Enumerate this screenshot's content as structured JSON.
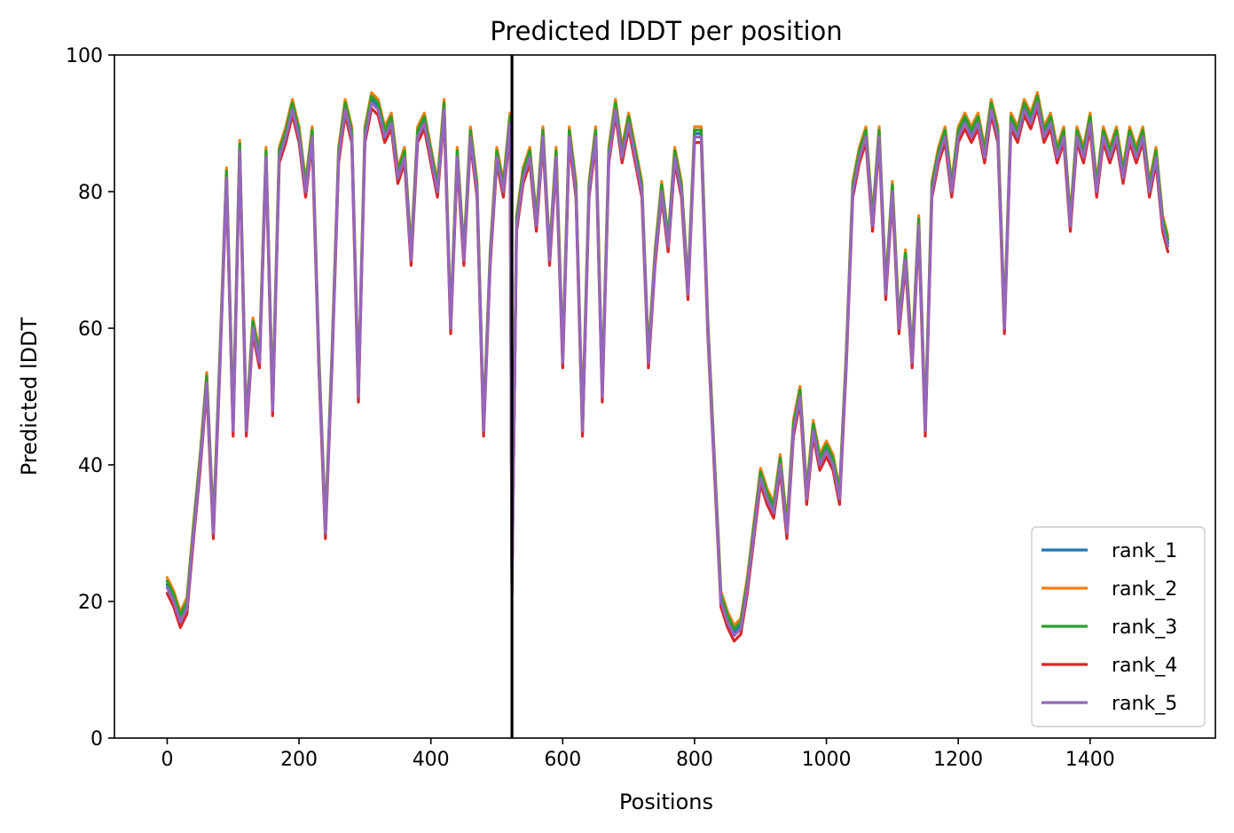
{
  "chart_data": {
    "type": "line",
    "title": "Predicted lDDT per position",
    "xlabel": "Positions",
    "ylabel": "Predicted lDDT",
    "xlim": [
      -80,
      1590
    ],
    "ylim": [
      0,
      100
    ],
    "xticks": [
      0,
      200,
      400,
      600,
      800,
      1000,
      1200,
      1400
    ],
    "yticks": [
      0,
      20,
      40,
      60,
      80,
      100
    ],
    "grid": false,
    "legend_position": "lower right",
    "vline": 523,
    "colors": {
      "rank_1": "#1f77b4",
      "rank_2": "#ff7f0e",
      "rank_3": "#2ca02c",
      "rank_4": "#d62728",
      "rank_5": "#9467bd",
      "vline": "#000000"
    },
    "base_profile": [
      [
        0,
        22
      ],
      [
        10,
        20
      ],
      [
        20,
        17
      ],
      [
        30,
        19
      ],
      [
        40,
        30
      ],
      [
        50,
        40
      ],
      [
        60,
        52
      ],
      [
        70,
        30
      ],
      [
        80,
        55
      ],
      [
        90,
        82
      ],
      [
        100,
        45
      ],
      [
        110,
        86
      ],
      [
        120,
        45
      ],
      [
        130,
        60
      ],
      [
        140,
        55
      ],
      [
        150,
        85
      ],
      [
        160,
        48
      ],
      [
        170,
        85
      ],
      [
        180,
        88
      ],
      [
        190,
        92
      ],
      [
        200,
        88
      ],
      [
        210,
        80
      ],
      [
        220,
        88
      ],
      [
        230,
        55
      ],
      [
        240,
        30
      ],
      [
        250,
        55
      ],
      [
        260,
        85
      ],
      [
        270,
        92
      ],
      [
        280,
        88
      ],
      [
        290,
        50
      ],
      [
        300,
        88
      ],
      [
        310,
        93
      ],
      [
        320,
        92
      ],
      [
        330,
        88
      ],
      [
        340,
        90
      ],
      [
        350,
        82
      ],
      [
        360,
        85
      ],
      [
        370,
        70
      ],
      [
        380,
        88
      ],
      [
        390,
        90
      ],
      [
        400,
        85
      ],
      [
        410,
        80
      ],
      [
        420,
        92
      ],
      [
        430,
        60
      ],
      [
        440,
        85
      ],
      [
        450,
        70
      ],
      [
        460,
        88
      ],
      [
        470,
        80
      ],
      [
        480,
        45
      ],
      [
        490,
        70
      ],
      [
        500,
        85
      ],
      [
        510,
        80
      ],
      [
        520,
        90
      ],
      [
        523,
        22
      ],
      [
        530,
        75
      ],
      [
        540,
        82
      ],
      [
        550,
        85
      ],
      [
        560,
        75
      ],
      [
        570,
        88
      ],
      [
        580,
        70
      ],
      [
        590,
        85
      ],
      [
        600,
        55
      ],
      [
        610,
        88
      ],
      [
        620,
        80
      ],
      [
        630,
        45
      ],
      [
        640,
        80
      ],
      [
        650,
        88
      ],
      [
        660,
        50
      ],
      [
        670,
        85
      ],
      [
        680,
        92
      ],
      [
        690,
        85
      ],
      [
        700,
        90
      ],
      [
        710,
        85
      ],
      [
        720,
        80
      ],
      [
        730,
        55
      ],
      [
        740,
        70
      ],
      [
        750,
        80
      ],
      [
        760,
        72
      ],
      [
        770,
        85
      ],
      [
        780,
        80
      ],
      [
        790,
        65
      ],
      [
        800,
        88
      ],
      [
        810,
        88
      ],
      [
        820,
        60
      ],
      [
        830,
        40
      ],
      [
        840,
        20
      ],
      [
        850,
        17
      ],
      [
        860,
        15
      ],
      [
        870,
        16
      ],
      [
        880,
        22
      ],
      [
        890,
        30
      ],
      [
        900,
        38
      ],
      [
        910,
        35
      ],
      [
        920,
        33
      ],
      [
        930,
        40
      ],
      [
        940,
        30
      ],
      [
        950,
        45
      ],
      [
        960,
        50
      ],
      [
        970,
        35
      ],
      [
        980,
        45
      ],
      [
        990,
        40
      ],
      [
        1000,
        42
      ],
      [
        1010,
        40
      ],
      [
        1020,
        35
      ],
      [
        1030,
        55
      ],
      [
        1040,
        80
      ],
      [
        1050,
        85
      ],
      [
        1060,
        88
      ],
      [
        1070,
        75
      ],
      [
        1080,
        88
      ],
      [
        1090,
        65
      ],
      [
        1100,
        80
      ],
      [
        1110,
        60
      ],
      [
        1120,
        70
      ],
      [
        1130,
        55
      ],
      [
        1140,
        75
      ],
      [
        1150,
        45
      ],
      [
        1160,
        80
      ],
      [
        1170,
        85
      ],
      [
        1180,
        88
      ],
      [
        1190,
        80
      ],
      [
        1200,
        88
      ],
      [
        1210,
        90
      ],
      [
        1220,
        88
      ],
      [
        1230,
        90
      ],
      [
        1240,
        85
      ],
      [
        1250,
        92
      ],
      [
        1260,
        88
      ],
      [
        1270,
        60
      ],
      [
        1280,
        90
      ],
      [
        1290,
        88
      ],
      [
        1300,
        92
      ],
      [
        1310,
        90
      ],
      [
        1320,
        93
      ],
      [
        1330,
        88
      ],
      [
        1340,
        90
      ],
      [
        1350,
        85
      ],
      [
        1360,
        88
      ],
      [
        1370,
        75
      ],
      [
        1380,
        88
      ],
      [
        1390,
        85
      ],
      [
        1400,
        90
      ],
      [
        1410,
        80
      ],
      [
        1420,
        88
      ],
      [
        1430,
        85
      ],
      [
        1440,
        88
      ],
      [
        1450,
        82
      ],
      [
        1460,
        88
      ],
      [
        1470,
        85
      ],
      [
        1480,
        88
      ],
      [
        1490,
        80
      ],
      [
        1500,
        85
      ],
      [
        1510,
        75
      ],
      [
        1518,
        72
      ]
    ],
    "series": [
      {
        "name": "rank_1",
        "offset": 0.5
      },
      {
        "name": "rank_2",
        "offset": 1.5
      },
      {
        "name": "rank_3",
        "offset": 1.0
      },
      {
        "name": "rank_4",
        "offset": -0.8
      },
      {
        "name": "rank_5",
        "offset": 0.0
      }
    ]
  }
}
